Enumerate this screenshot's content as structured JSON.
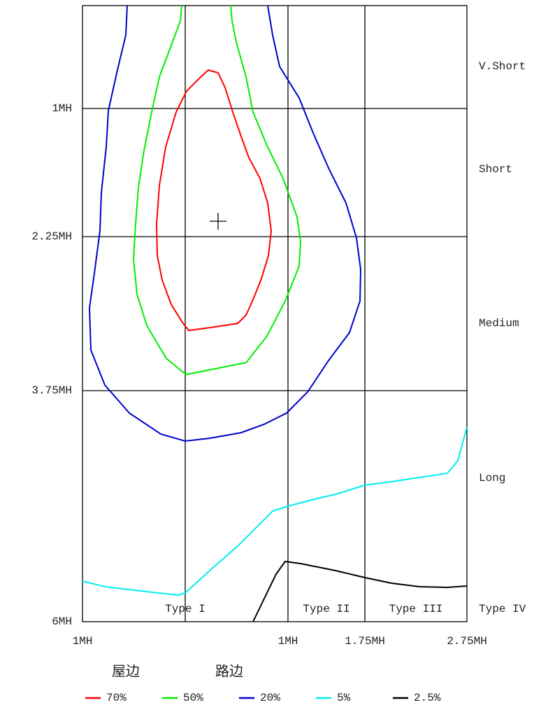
{
  "y_labels": [
    "1MH",
    "2.25MH",
    "3.75MH",
    "6MH"
  ],
  "x_labels": [
    "1MH",
    "1MH",
    "1.75MH",
    "2.75MH"
  ],
  "right_labels": [
    "V.Short",
    "Short",
    "Medium",
    "Long",
    "Type IV"
  ],
  "type_labels": [
    "Type I",
    "Type II",
    "Type III"
  ],
  "legend": {
    "headers": [
      "屋边",
      "路边"
    ],
    "items": [
      {
        "label": "70%",
        "color": "#ff0000"
      },
      {
        "label": "50%",
        "color": "#00ee00"
      },
      {
        "label": "20%",
        "color": "#0000cc"
      },
      {
        "label": "5%",
        "color": "#00eeee"
      },
      {
        "label": "2.5%",
        "color": "#000000"
      }
    ]
  }
}
